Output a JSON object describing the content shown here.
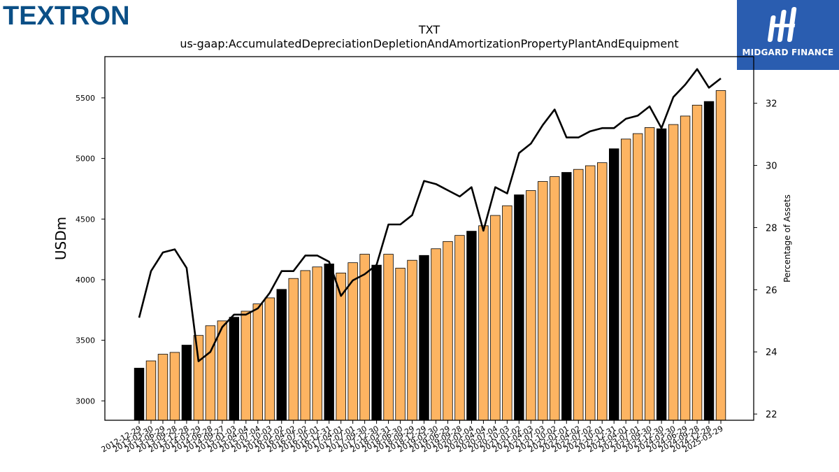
{
  "brand": {
    "company": "TEXTRON",
    "watermark": "MIDGARD FINANCE"
  },
  "chart_data": {
    "type": "bar",
    "title": "TXT",
    "subtitle": "us-gaap:AccumulatedDepreciationDepletionAndAmortizationPropertyPlantAndEquipment",
    "ylabel": "USDm",
    "y2label": "Percentage of Assets",
    "ylim": [
      2840,
      5840
    ],
    "y2lim": [
      21.8,
      33.5
    ],
    "yticks": [
      3000,
      3500,
      4000,
      4500,
      5000,
      5500
    ],
    "y2ticks": [
      22,
      24,
      26,
      28,
      30,
      32
    ],
    "colors": {
      "bar": "#fdb462",
      "bar_highlight": "#000000",
      "line": "#000000"
    },
    "categories": [
      "2012-12-29",
      "2013-03-30",
      "2013-06-29",
      "2013-09-28",
      "2013-12-28",
      "2014-03-29",
      "2014-06-28",
      "2014-09-27",
      "2015-01-03",
      "2015-04-04",
      "2015-07-04",
      "2015-10-03",
      "2016-01-02",
      "2016-04-02",
      "2016-07-02",
      "2016-10-01",
      "2016-12-31",
      "2017-04-01",
      "2017-07-01",
      "2017-09-30",
      "2017-12-30",
      "2018-03-31",
      "2018-06-30",
      "2018-09-29",
      "2018-12-29",
      "2019-03-30",
      "2019-06-29",
      "2019-09-28",
      "2020-01-04",
      "2020-04-04",
      "2020-07-04",
      "2020-10-03",
      "2021-01-02",
      "2021-04-03",
      "2021-07-03",
      "2021-10-02",
      "2022-01-01",
      "2022-04-02",
      "2022-07-02",
      "2022-10-01",
      "2022-12-31",
      "2023-04-01",
      "2023-07-01",
      "2023-09-30",
      "2023-12-30",
      "2024-03-30",
      "2024-06-29",
      "2024-09-28",
      "2024-12-28",
      "2025-03-29"
    ],
    "highlight": [
      true,
      false,
      false,
      false,
      true,
      false,
      false,
      false,
      true,
      false,
      false,
      false,
      true,
      false,
      false,
      false,
      true,
      false,
      false,
      false,
      true,
      false,
      false,
      false,
      true,
      false,
      false,
      false,
      true,
      false,
      false,
      false,
      true,
      false,
      false,
      false,
      true,
      false,
      false,
      false,
      true,
      false,
      false,
      false,
      true,
      false,
      false,
      false,
      true,
      false
    ],
    "series": [
      {
        "values": [
          3270,
          3330,
          3385,
          3400,
          3460,
          3540,
          3620,
          3660,
          3690,
          3740,
          3800,
          3850,
          3920,
          4010,
          4075,
          4105,
          4130,
          4055,
          4140,
          4210,
          4120,
          4210,
          4095,
          4160,
          4200,
          4255,
          4315,
          4365,
          4400,
          4445,
          4530,
          4610,
          4700,
          4735,
          4810,
          4850,
          4885,
          4910,
          4940,
          4965,
          5080,
          5160,
          5205,
          5255,
          5245,
          5280,
          5350,
          5440,
          5470,
          5560
        ]
      },
      {
        "axis": "right",
        "type": "line",
        "values": [
          25.1,
          26.6,
          27.2,
          27.3,
          26.7,
          23.7,
          24.0,
          24.8,
          25.2,
          25.2,
          25.4,
          25.9,
          26.6,
          26.6,
          27.1,
          27.1,
          26.9,
          25.8,
          26.3,
          26.5,
          26.8,
          28.1,
          28.1,
          28.4,
          29.5,
          29.4,
          29.2,
          29.0,
          29.3,
          27.9,
          29.3,
          29.1,
          30.4,
          30.7,
          31.3,
          31.8,
          30.9,
          30.9,
          31.1,
          31.2,
          31.2,
          31.5,
          31.6,
          31.9,
          31.2,
          32.2,
          32.6,
          33.1,
          32.5,
          32.8
        ]
      }
    ]
  }
}
